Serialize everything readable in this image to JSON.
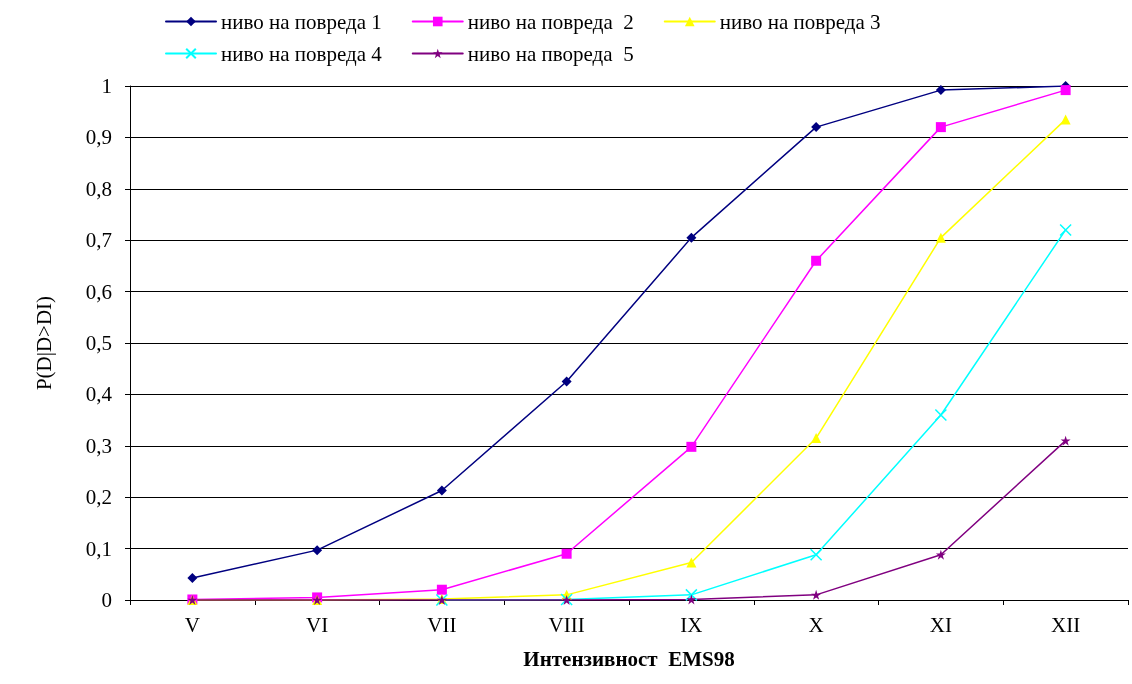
{
  "chart_data": {
    "type": "line",
    "xlabel": "Интензивност  EMS98",
    "ylabel": "P(D|D>DI)",
    "categories": [
      "V",
      "VI",
      "VII",
      "VIII",
      "IX",
      "X",
      "XI",
      "XII"
    ],
    "series": [
      {
        "name": "ниво на повреда 1",
        "color": "#000080",
        "marker": "diamond",
        "values": [
          0.043,
          0.097,
          0.213,
          0.425,
          0.705,
          0.92,
          0.992,
          1.0
        ]
      },
      {
        "name": "ниво на повреда  2",
        "color": "#ff00ff",
        "marker": "square",
        "values": [
          0.001,
          0.005,
          0.02,
          0.09,
          0.298,
          0.66,
          0.92,
          0.992
        ]
      },
      {
        "name": "ниво на повреда 3",
        "color": "#ffff00",
        "marker": "triangle",
        "values": [
          0,
          0,
          0.002,
          0.01,
          0.073,
          0.315,
          0.705,
          0.935
        ]
      },
      {
        "name": "ниво на повреда 4",
        "color": "#00ffff",
        "marker": "cross",
        "values": [
          null,
          null,
          0,
          0.001,
          0.01,
          0.088,
          0.36,
          0.72
        ]
      },
      {
        "name": "ниво на пвореда  5",
        "color": "#800080",
        "marker": "star",
        "values": [
          0,
          0,
          0,
          0,
          0.001,
          0.01,
          0.088,
          0.31
        ]
      }
    ],
    "ylim": [
      0,
      1
    ],
    "yticks": [
      0,
      {
        "value": 0.1,
        "label": "0,1"
      },
      {
        "value": 0.2,
        "label": "0,2"
      },
      {
        "value": 0.3,
        "label": "0,3"
      },
      {
        "value": 0.4,
        "label": "0,4"
      },
      {
        "value": 0.5,
        "label": "0,5"
      },
      {
        "value": 0.6,
        "label": "0,6"
      },
      {
        "value": 0.7,
        "label": "0,7"
      },
      {
        "value": 0.8,
        "label": "0,8"
      },
      {
        "value": 0.9,
        "label": "0,9"
      },
      1
    ],
    "grid": "y",
    "legend": "top",
    "line_style": "solid"
  }
}
